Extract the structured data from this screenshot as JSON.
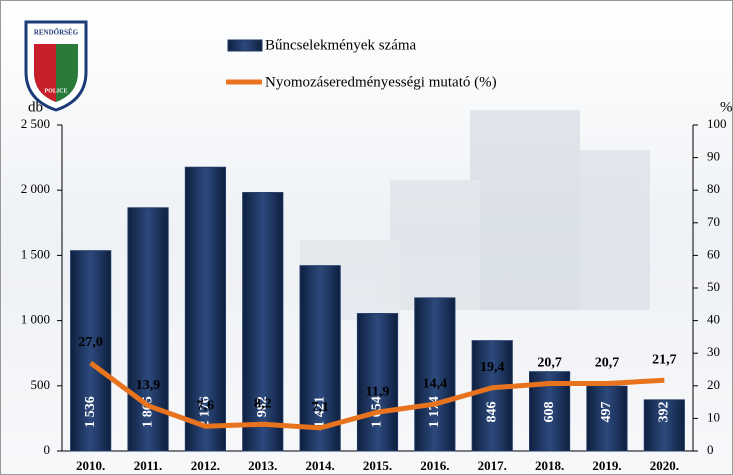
{
  "chart_data": {
    "type": "bar",
    "logo": {
      "top": "RENDŐRSÉG",
      "bottom": "POLICE"
    },
    "ylabel": "db",
    "y2label": "%",
    "categories": [
      "2010.",
      "2011.",
      "2012.",
      "2013.",
      "2014.",
      "2015.",
      "2016.",
      "2017.",
      "2018.",
      "2019.",
      "2020."
    ],
    "series": [
      {
        "name": "Bűncselekmények száma",
        "type": "bar",
        "color": "#1f3864",
        "values": [
          1536,
          1865,
          2176,
          1982,
          1421,
          1054,
          1174,
          846,
          608,
          497,
          392
        ],
        "value_labels": [
          "1 536",
          "1 865",
          "2 176",
          "1 982",
          "1 421",
          "1 054",
          "1 174",
          "846",
          "608",
          "497",
          "392"
        ]
      },
      {
        "name": "Nyomozáseredményességi mutató (%)",
        "type": "line",
        "axis": "y2",
        "color": "#e8731e",
        "values": [
          27.0,
          13.9,
          7.6,
          8.2,
          7.1,
          11.9,
          14.4,
          19.4,
          20.7,
          20.7,
          21.7
        ],
        "value_labels": [
          "27,0",
          "13,9",
          "7,6",
          "8,2",
          "7,1",
          "11,9",
          "14,4",
          "19,4",
          "20,7",
          "20,7",
          "21,7"
        ]
      }
    ],
    "ylim": [
      0,
      2500
    ],
    "yticks": [
      0,
      500,
      {
        "value": 1000,
        "label": "1 000"
      },
      {
        "value": 1500,
        "label": "1 500"
      },
      {
        "value": 2000,
        "label": "2 000"
      },
      {
        "value": 2500,
        "label": "2 500"
      }
    ],
    "y2lim": [
      0,
      100
    ],
    "y2ticks": [
      0,
      10,
      20,
      30,
      40,
      50,
      60,
      70,
      80,
      90,
      100
    ]
  }
}
